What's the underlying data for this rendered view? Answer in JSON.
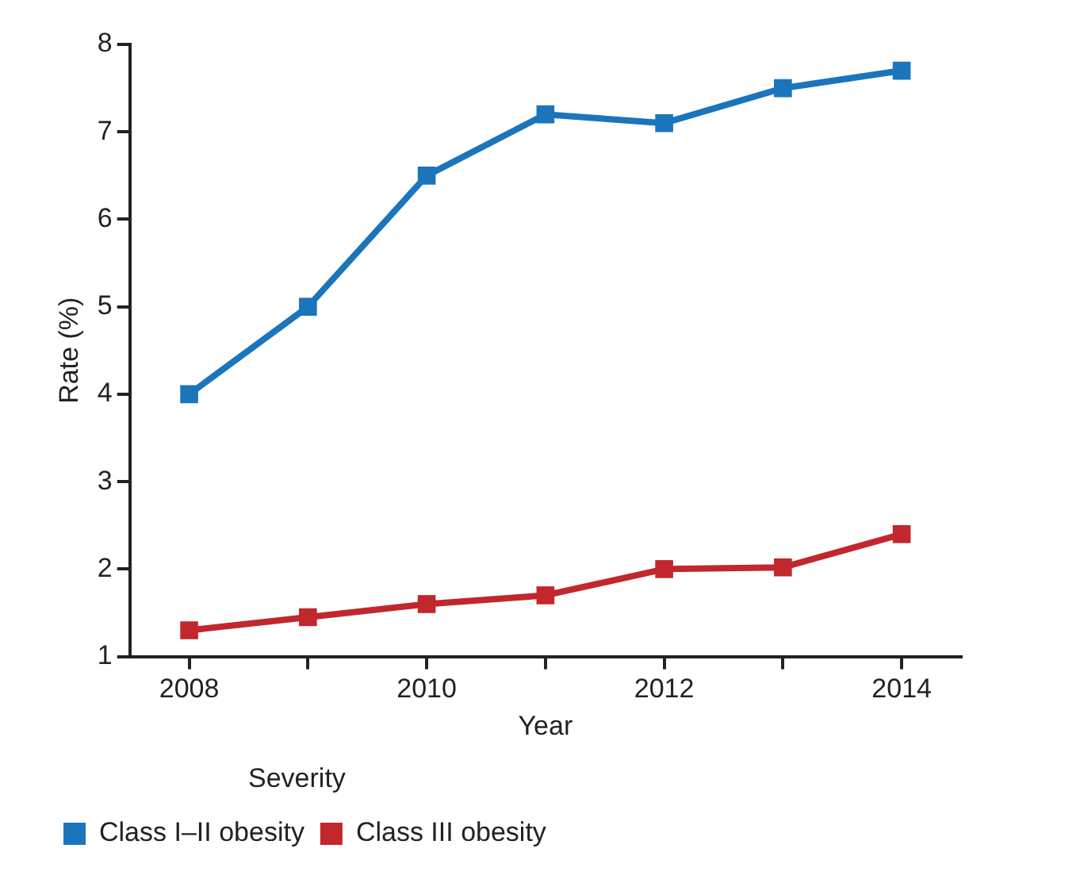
{
  "chart_data": {
    "type": "line",
    "xlabel": "Year",
    "ylabel": "Rate (%)",
    "legend_title": "Severity",
    "x": [
      2008,
      2009,
      2010,
      2011,
      2012,
      2013,
      2014
    ],
    "series": [
      {
        "name": "Class I–II obesity",
        "color": "#1a75bc",
        "values": [
          4.0,
          5.0,
          6.5,
          7.2,
          7.1,
          7.5,
          7.7
        ]
      },
      {
        "name": "Class III obesity",
        "color": "#c1272d",
        "values": [
          1.3,
          1.45,
          1.6,
          1.7,
          2.0,
          2.02,
          2.4
        ]
      }
    ],
    "xlim": [
      2007.5,
      2014.5
    ],
    "ylim": [
      1,
      8
    ],
    "xticks": [
      2008,
      {
        "value": 2009,
        "label": null
      },
      2010,
      {
        "value": 2011,
        "label": null
      },
      2012,
      {
        "value": 2013,
        "label": null
      },
      2014
    ],
    "yticks": [
      1,
      2,
      3,
      4,
      5,
      6,
      7,
      8
    ],
    "grid": false,
    "legend": "bottom",
    "marker": "square",
    "line_style": "solid"
  }
}
